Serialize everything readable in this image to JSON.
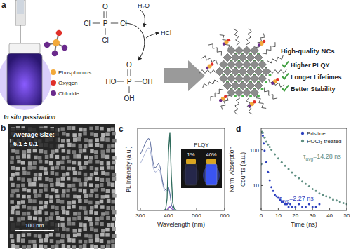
{
  "figure": {
    "panel_labels": [
      "a",
      "b",
      "c",
      "d"
    ],
    "reagent": {
      "center": "P",
      "top": "O",
      "left": "Cl",
      "right": "Cl",
      "bottom": "Cl"
    },
    "water": "H₂O",
    "byproduct": "HCl",
    "product": {
      "center": "P",
      "top": "O",
      "left": "HO",
      "right": "OH",
      "bottom": "OH"
    },
    "legend": [
      {
        "name": "Phosphorous",
        "color": "#f2a93b"
      },
      {
        "name": "Oxygen",
        "color": "#e0302a"
      },
      {
        "name": "Chloride",
        "color": "#6a2a8c"
      }
    ],
    "caption": "In situ passivation",
    "result": {
      "title": "High-quality NCs",
      "items": [
        "Higher PLQY",
        "Longer Lifetimes",
        "Better Stability"
      ],
      "check_color": "#3f9e3f"
    },
    "tem": {
      "size_label": "Average Size:",
      "size_value": "6.1 ± 0.1",
      "scale_bar": "100 nm"
    }
  },
  "chart_data": [
    {
      "type": "line",
      "xlabel": "Wavelength (nm)",
      "ylabel": "PL Intensity (a.u.)",
      "y2label": "Norm. Absorption",
      "x": [
        300,
        305,
        310,
        315,
        320,
        325,
        330,
        335,
        340,
        345,
        350,
        355,
        360,
        365,
        370,
        375,
        380,
        385,
        390,
        395,
        400,
        405,
        410,
        415,
        420,
        425,
        430,
        435,
        440,
        445,
        450,
        475,
        500,
        550,
        600
      ],
      "xlim": [
        290,
        600
      ],
      "xticks": [
        300,
        400,
        500,
        600
      ],
      "ylim": [
        0,
        1.05
      ],
      "y2lim": [
        0,
        1.05
      ],
      "tick_labels": "x",
      "grid": false,
      "series": [
        {
          "color": "#a9b3d6",
          "axis": "y2",
          "values": [
            0.6,
            0.64,
            0.68,
            0.72,
            0.76,
            0.79,
            0.8,
            0.77,
            0.66,
            0.56,
            0.5,
            0.49,
            0.51,
            0.53,
            0.5,
            0.41,
            0.32,
            0.26,
            0.24,
            0.26,
            0.28,
            0.21,
            0.08,
            0.03,
            0.01,
            0,
            0,
            0,
            0,
            0,
            0,
            0,
            0,
            0,
            0
          ]
        },
        {
          "color": "#5c6c9e",
          "axis": "y2",
          "values": [
            0.72,
            0.76,
            0.8,
            0.84,
            0.88,
            0.91,
            0.92,
            0.88,
            0.75,
            0.62,
            0.55,
            0.55,
            0.58,
            0.6,
            0.56,
            0.45,
            0.35,
            0.28,
            0.26,
            0.28,
            0.3,
            0.22,
            0.08,
            0.03,
            0.01,
            0,
            0,
            0,
            0,
            0,
            0,
            0,
            0,
            0,
            0
          ]
        },
        {
          "color": "#8a5cc8",
          "values": [
            0,
            0,
            0,
            0,
            0,
            0,
            0,
            0,
            0,
            0,
            0,
            0,
            0,
            0,
            0,
            0,
            0,
            0,
            0,
            0.01,
            0.03,
            0.05,
            0.03,
            0.01,
            0,
            0,
            0,
            0,
            0,
            0,
            0,
            0,
            0,
            0,
            0
          ]
        },
        {
          "color": "#2f6b5c",
          "values": [
            0,
            0,
            0,
            0,
            0,
            0,
            0,
            0,
            0,
            0,
            0,
            0,
            0,
            0,
            0,
            0,
            0,
            0,
            0.02,
            0.15,
            0.75,
            1.0,
            0.45,
            0.1,
            0.03,
            0.01,
            0,
            0,
            0,
            0,
            0,
            0,
            0,
            0,
            0
          ]
        }
      ],
      "inset": {
        "title": "PLQY",
        "labels": [
          "1%",
          "40%"
        ]
      }
    },
    {
      "type": "scatter",
      "xlabel": "Time (ns)",
      "ylabel": "Counts (a.u.)",
      "log": "y",
      "xlim": [
        0,
        50
      ],
      "xticks": [
        0,
        10,
        20,
        30,
        40,
        50
      ],
      "ylim": [
        2,
        400
      ],
      "yticks": [
        10,
        100
      ],
      "grid": false,
      "legend": "upper right",
      "marker": "circle",
      "series": [
        {
          "name": "Pristine",
          "color": "#2b3fbf",
          "x": [
            0,
            0.5,
            1,
            1.5,
            2,
            3,
            4,
            5,
            6,
            7,
            8,
            9,
            10,
            11,
            12,
            13,
            14,
            15,
            16,
            17,
            18,
            20,
            22,
            24,
            26,
            28,
            30,
            32,
            34
          ],
          "values": [
            40,
            300,
            250,
            150,
            95,
            45,
            24,
            14,
            9,
            7,
            5.5,
            5,
            4.5,
            4,
            3.5,
            3.5,
            3,
            3,
            2.5,
            3,
            2.5,
            2.5,
            3,
            2.5,
            2.5,
            3,
            2.5,
            2.5,
            3
          ]
        },
        {
          "name": "POCl₃ treated",
          "color": "#5f8f82",
          "x": [
            0,
            0.5,
            1,
            2,
            3,
            4,
            5,
            6,
            8,
            10,
            12,
            14,
            16,
            18,
            20,
            22,
            24,
            26,
            28,
            30,
            32,
            34,
            36,
            38,
            40,
            42,
            44,
            46,
            48,
            50
          ],
          "values": [
            40,
            320,
            300,
            220,
            170,
            140,
            120,
            100,
            75,
            58,
            45,
            36,
            29,
            23,
            19,
            16,
            13,
            11,
            9.5,
            8,
            7,
            6,
            5.5,
            5,
            4.5,
            4,
            3.8,
            3.5,
            3.2,
            3
          ]
        }
      ],
      "annotations": [
        {
          "symbol": "τ",
          "subscript": "avg",
          "text": "=14.28 ns",
          "color": "#5f8f82"
        },
        {
          "symbol": "τ",
          "subscript": "avg",
          "text": "=2.27 ns",
          "color": "#2b3fbf"
        }
      ]
    }
  ]
}
